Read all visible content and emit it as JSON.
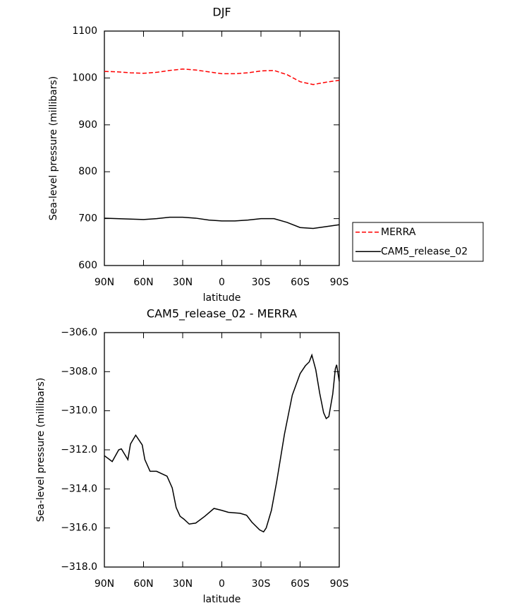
{
  "chart_data": [
    {
      "type": "line",
      "title": "DJF",
      "x_label": "latitude",
      "y_label": "Sea-level pressure (millibars)",
      "x": [
        90,
        80,
        70,
        60,
        50,
        40,
        30,
        20,
        10,
        0,
        -10,
        -20,
        -30,
        -40,
        -50,
        -60,
        -70,
        -80,
        -90
      ],
      "series": [
        {
          "name": "MERRA",
          "color": "#ff0000",
          "dashed": true,
          "values": [
            1014,
            1013,
            1011,
            1010,
            1012,
            1016,
            1019,
            1017,
            1013,
            1009,
            1009,
            1011,
            1015,
            1016,
            1007,
            992,
            986,
            991,
            995
          ]
        },
        {
          "name": "CAM5_release_02",
          "color": "#000000",
          "dashed": false,
          "values": [
            701,
            700,
            699,
            698,
            700,
            703,
            703,
            701,
            697,
            695,
            695,
            697,
            700,
            700,
            692,
            681,
            679,
            683,
            687
          ]
        }
      ],
      "xlim": [
        90,
        -90
      ],
      "xticks": [
        {
          "value": 90,
          "label": "90N"
        },
        {
          "value": 60,
          "label": "60N"
        },
        {
          "value": 30,
          "label": "30N"
        },
        0,
        {
          "value": -30,
          "label": "30S"
        },
        {
          "value": -60,
          "label": "60S"
        },
        {
          "value": -90,
          "label": "90S"
        }
      ],
      "ylim": [
        600,
        1100
      ],
      "yticks": [
        600,
        700,
        800,
        900,
        1000,
        1100
      ],
      "legend": "right"
    },
    {
      "type": "line",
      "title": "CAM5_release_02 - MERRA",
      "x_label": "latitude",
      "y_label": "Sea-level pressure (millibars)",
      "x": [
        90,
        84,
        79,
        77,
        72,
        70,
        66,
        61,
        59,
        55,
        50,
        42,
        38,
        35,
        32,
        29,
        25,
        20,
        13,
        6,
        0,
        -5,
        -14,
        -19,
        -23,
        -29,
        -32,
        -34,
        -38,
        -42,
        -48,
        -54,
        -60,
        -64,
        -67,
        -69,
        -72,
        -75,
        -78,
        -80,
        -82,
        -85,
        -87,
        -88,
        -90
      ],
      "series": [
        {
          "name": null,
          "color": "#000000",
          "dashed": false,
          "values": [
            -312.3,
            -312.6,
            -312.0,
            -311.95,
            -312.5,
            -311.7,
            -311.25,
            -311.75,
            -312.5,
            -313.1,
            -313.1,
            -313.35,
            -313.95,
            -314.95,
            -315.4,
            -315.55,
            -315.8,
            -315.75,
            -315.4,
            -315.0,
            -315.1,
            -315.2,
            -315.25,
            -315.35,
            -315.7,
            -316.1,
            -316.2,
            -316.0,
            -315.1,
            -313.65,
            -311.2,
            -309.2,
            -308.1,
            -307.7,
            -307.5,
            -307.15,
            -307.9,
            -309.1,
            -310.1,
            -310.4,
            -310.3,
            -309.15,
            -307.85,
            -307.65,
            -308.5
          ]
        }
      ],
      "xlim": [
        90,
        -90
      ],
      "xticks": [
        {
          "value": 90,
          "label": "90N"
        },
        {
          "value": 60,
          "label": "60N"
        },
        {
          "value": 30,
          "label": "30N"
        },
        0,
        {
          "value": -30,
          "label": "30S"
        },
        {
          "value": -60,
          "label": "60S"
        },
        {
          "value": -90,
          "label": "90S"
        }
      ],
      "ylim": [
        -318,
        -306
      ],
      "yticks": [
        {
          "value": -318,
          "label": "−318.0"
        },
        {
          "value": -316,
          "label": "−316.0"
        },
        {
          "value": -314,
          "label": "−314.0"
        },
        {
          "value": -312,
          "label": "−312.0"
        },
        {
          "value": -310,
          "label": "−310.0"
        },
        {
          "value": -308,
          "label": "−308.0"
        },
        {
          "value": -306,
          "label": "−306.0"
        }
      ]
    }
  ]
}
